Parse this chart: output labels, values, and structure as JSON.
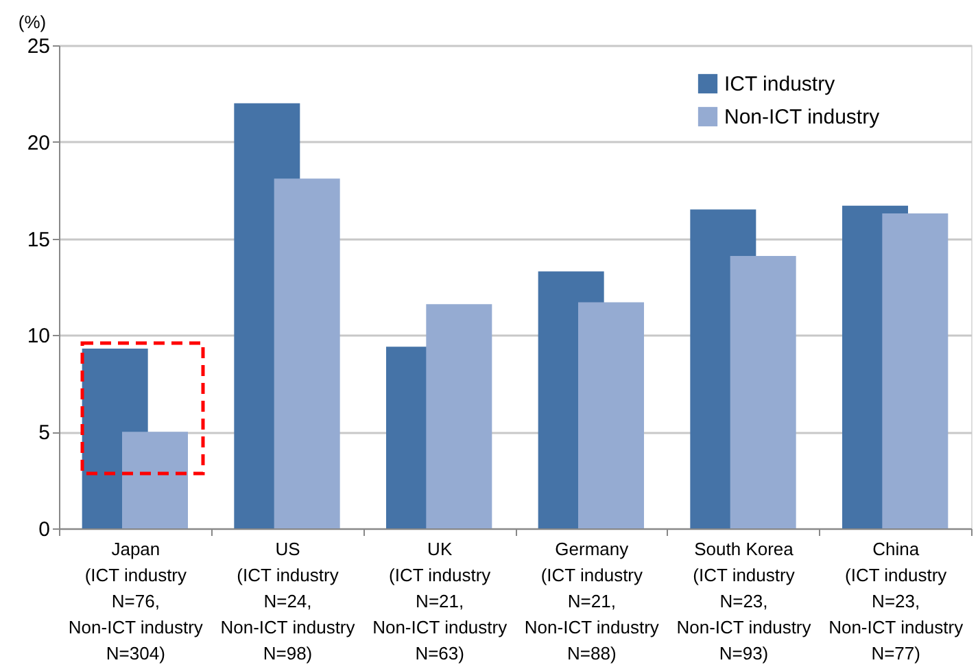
{
  "chart_data": {
    "type": "bar",
    "ylabel": "(%)",
    "categories": [
      "Japan\n(ICT industry\nN=76,\nNon-ICT industry\nN=304)",
      "US\n(ICT industry\nN=24,\nNon-ICT industry\nN=98)",
      "UK\n(ICT industry\nN=21,\nNon-ICT industry\nN=63)",
      "Germany\n(ICT industry\nN=21,\nNon-ICT industry\nN=88)",
      "South Korea\n(ICT industry\nN=23,\nNon-ICT industry\nN=93)",
      "China\n(ICT industry\nN=23,\nNon-ICT industry\nN=77)"
    ],
    "series": [
      {
        "name": "ICT industry",
        "color": "#4573a7",
        "values": [
          9.3,
          22.0,
          9.4,
          13.3,
          16.5,
          16.7
        ]
      },
      {
        "name": "Non-ICT industry",
        "color": "#95abd2",
        "values": [
          5.0,
          18.1,
          11.6,
          11.7,
          14.1,
          16.3
        ]
      }
    ],
    "ylim": [
      0,
      25
    ],
    "yticks": [
      0,
      5,
      10,
      15,
      20,
      25
    ],
    "grid": "y",
    "legend": "top right"
  }
}
